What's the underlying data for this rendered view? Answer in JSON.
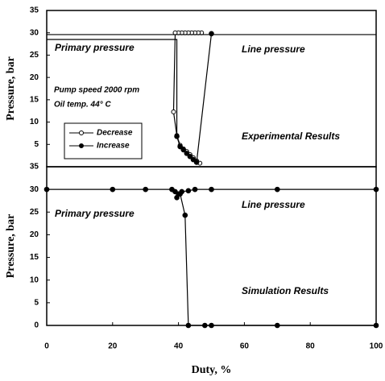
{
  "chart_data": [
    {
      "type": "line",
      "ylabel": "Pressure, bar",
      "xlim": [
        0,
        100
      ],
      "ylim": [
        0,
        35
      ],
      "yticks": [
        5,
        10,
        15,
        20,
        25,
        30,
        35
      ],
      "legend": "lower left",
      "annotations": [
        "Primary pressure",
        "Line pressure",
        "Pump speed 2000 rpm",
        "Oil temp. 44° C",
        "Experimental Results"
      ],
      "series": [
        {
          "name": "Decrease",
          "color": "#000",
          "marker": "open",
          "x": [
            47,
            46,
            45,
            44,
            43,
            42,
            41,
            40,
            39,
            38.5,
            39.5,
            40.5,
            41.5,
            42.5,
            43.5,
            44.5,
            45.5,
            46.5
          ],
          "values": [
            30,
            30,
            30,
            30,
            30,
            30,
            30,
            30,
            30,
            12.3,
            7,
            4.8,
            4,
            3.4,
            2.7,
            2,
            1.3,
            0.8
          ]
        },
        {
          "name": "Increase",
          "color": "#000",
          "marker": "filled",
          "x": [
            39.5,
            40.5,
            41.5,
            42.5,
            43.5,
            44.5,
            45.5,
            50
          ],
          "values": [
            6.8,
            4.5,
            3.8,
            3,
            2.3,
            1.6,
            1,
            29.8
          ]
        },
        {
          "color": "#000",
          "marker": "none",
          "x": [
            0,
            100
          ],
          "values": [
            29.6,
            29.6
          ]
        },
        {
          "color": "#000",
          "marker": "none",
          "x": [
            0,
            39.5,
            39.5
          ],
          "values": [
            28.5,
            28.5,
            7
          ]
        }
      ]
    },
    {
      "type": "line",
      "ylabel": "Pressure, bar",
      "xlabel": "Duty, %",
      "xlim": [
        0,
        100
      ],
      "xticks": [
        0,
        20,
        40,
        60,
        80,
        100
      ],
      "ylim": [
        0,
        35
      ],
      "yticks": [
        0,
        5,
        10,
        15,
        20,
        25,
        30,
        35
      ],
      "annotations": [
        "Line pressure",
        "Primary pressure",
        "Simulation Results"
      ],
      "series": [
        {
          "color": "#000",
          "marker": "filled",
          "x": [
            0,
            20,
            30,
            38,
            39,
            40,
            41,
            43,
            45,
            50,
            70,
            100
          ],
          "values": [
            30,
            30,
            30,
            30,
            29.5,
            29,
            29.5,
            29.7,
            30,
            30,
            30,
            30
          ]
        },
        {
          "color": "#000",
          "marker": "filled",
          "x": [
            39.5,
            40.5,
            42,
            43,
            48,
            50,
            70,
            100
          ],
          "values": [
            28.2,
            29,
            24.3,
            0,
            0,
            0,
            0,
            0
          ]
        }
      ]
    }
  ]
}
